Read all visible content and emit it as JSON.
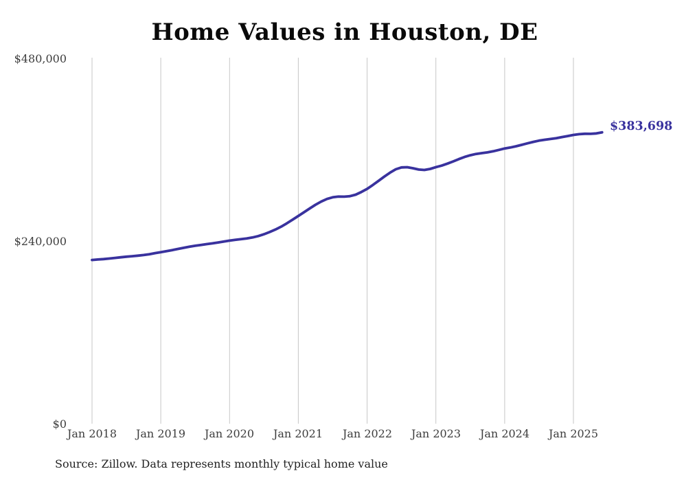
{
  "chart_data": {
    "type": "line",
    "title": "Home Values in Houston, DE",
    "source": "Source: Zillow. Data represents monthly typical home value",
    "end_label": "$383,698",
    "xlabel": "",
    "ylabel": "",
    "ylim": [
      0,
      480000
    ],
    "grid": "vertical-only",
    "legend": "none",
    "x_start_month": "Jan 2018",
    "x_end_month": "Jun 2025",
    "x_ticks": [
      {
        "label": "Jan 2018",
        "month_index": 0
      },
      {
        "label": "Jan 2019",
        "month_index": 12
      },
      {
        "label": "Jan 2020",
        "month_index": 24
      },
      {
        "label": "Jan 2021",
        "month_index": 36
      },
      {
        "label": "Jan 2022",
        "month_index": 48
      },
      {
        "label": "Jan 2023",
        "month_index": 60
      },
      {
        "label": "Jan 2024",
        "month_index": 72
      },
      {
        "label": "Jan 2025",
        "month_index": 84
      }
    ],
    "y_ticks": [
      {
        "label": "$0",
        "value": 0
      },
      {
        "label": "$240,000",
        "value": 240000
      },
      {
        "label": "$480,000",
        "value": 480000
      }
    ],
    "series": [
      {
        "name": "Monthly typical home value",
        "color": "#39329e",
        "start_month": "Jan 2018",
        "frequency": "monthly",
        "values": [
          216000,
          216600,
          217200,
          217900,
          218700,
          219500,
          220300,
          221000,
          221700,
          222500,
          223600,
          225000,
          226300,
          227600,
          229000,
          230500,
          232000,
          233400,
          234700,
          235800,
          236800,
          237800,
          239000,
          240200,
          241400,
          242400,
          243300,
          244300,
          245600,
          247400,
          249800,
          252700,
          256000,
          259800,
          264200,
          269000,
          273800,
          278800,
          283800,
          288600,
          292800,
          296200,
          298400,
          299300,
          299200,
          299800,
          301800,
          305300,
          309400,
          314500,
          320000,
          325500,
          330800,
          335200,
          337600,
          337900,
          336500,
          334800,
          334300,
          335600,
          338000,
          340000,
          342600,
          345500,
          348500,
          351300,
          353600,
          355300,
          356400,
          357400,
          358800,
          360600,
          362500,
          363800,
          365400,
          367300,
          369300,
          371200,
          372800,
          374000,
          375000,
          376100,
          377500,
          378900,
          380300,
          381300,
          381800,
          381700,
          382300,
          383698
        ]
      }
    ],
    "final_value": 383698,
    "colors": {
      "line": "#39329e",
      "grid": "#c6c6c6",
      "tick_text": "#3d3d3d",
      "title_text": "#0a0a0a",
      "source_text": "#222222",
      "background": "#ffffff"
    }
  }
}
